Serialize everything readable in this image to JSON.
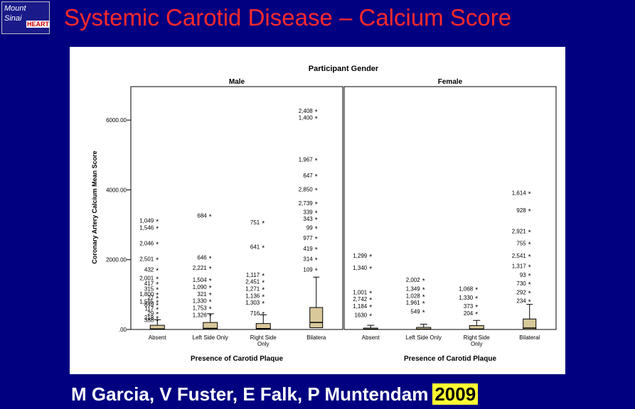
{
  "slide": {
    "title": "Systemic Carotid Disease – Calcium Score",
    "footer_authors": "M Garcia, V Fuster, E Falk, P Muntendam",
    "footer_year": "2009"
  },
  "logo": {
    "line1": "Mount",
    "line2": "Sinai",
    "mark": "HEART"
  },
  "colors": {
    "background": "#000080",
    "title": "#ff2a2a",
    "box_fill": "#d8c89a",
    "year_highlight": "#ffff33"
  },
  "chart_data": {
    "type": "box",
    "title": "Participant Gender",
    "ylabel": "Coronary Artery Calcium Mean Score",
    "xlabel": "Presence of Carotid Plaque",
    "ylim": [
      0,
      7000
    ],
    "yticks": [
      ".00",
      "2000.00",
      "4000.00",
      "6000.00"
    ],
    "ytick_values": [
      0,
      2000,
      4000,
      6000
    ],
    "categories": [
      "Absent",
      "Left Side Only",
      "Right Side Only",
      "Bilateral"
    ],
    "panels": [
      {
        "name": "Male",
        "xtick_labels": [
          "Absent",
          "Left Side Only",
          "Right Side\nOnly",
          "Bilatera"
        ],
        "boxes": [
          {
            "q1": 0,
            "median": 15,
            "q3": 120,
            "whisker_high": 280
          },
          {
            "q1": 0,
            "median": 30,
            "q3": 200,
            "whisker_high": 450
          },
          {
            "q1": 0,
            "median": 25,
            "q3": 170,
            "whisker_high": 420
          },
          {
            "q1": 50,
            "median": 200,
            "q3": 630,
            "whisker_high": 1500
          }
        ],
        "outliers": [
          {
            "cat": 0,
            "y": 3100,
            "label": "1,049"
          },
          {
            "cat": 0,
            "y": 2900,
            "label": "1,546"
          },
          {
            "cat": 0,
            "y": 2450,
            "label": "2,046"
          },
          {
            "cat": 0,
            "y": 2000,
            "label": "2,501"
          },
          {
            "cat": 0,
            "y": 1700,
            "label": "432"
          },
          {
            "cat": 0,
            "y": 1450,
            "label": "2,001"
          },
          {
            "cat": 0,
            "y": 1300,
            "label": "417"
          },
          {
            "cat": 0,
            "y": 1150,
            "label": "315"
          },
          {
            "cat": 0,
            "y": 1000,
            "label": "1,800"
          },
          {
            "cat": 0,
            "y": 900,
            "label": "27"
          },
          {
            "cat": 0,
            "y": 780,
            "label": "1,565"
          },
          {
            "cat": 0,
            "y": 700,
            "label": "849"
          },
          {
            "cat": 0,
            "y": 580,
            "label": "117"
          },
          {
            "cat": 0,
            "y": 450,
            "label": "29"
          },
          {
            "cat": 0,
            "y": 330,
            "label": "218"
          },
          {
            "cat": 0,
            "y": 250,
            "label": "388"
          },
          {
            "cat": 1,
            "y": 3250,
            "label": "684"
          },
          {
            "cat": 1,
            "y": 2050,
            "label": "646"
          },
          {
            "cat": 1,
            "y": 1750,
            "label": "2,221"
          },
          {
            "cat": 1,
            "y": 1400,
            "label": "1,504"
          },
          {
            "cat": 1,
            "y": 1200,
            "label": "1,090"
          },
          {
            "cat": 1,
            "y": 1000,
            "label": "321"
          },
          {
            "cat": 1,
            "y": 800,
            "label": "1,330"
          },
          {
            "cat": 1,
            "y": 600,
            "label": "1,753"
          },
          {
            "cat": 1,
            "y": 400,
            "label": "1,326"
          },
          {
            "cat": 2,
            "y": 3050,
            "label": "751"
          },
          {
            "cat": 2,
            "y": 2350,
            "label": "641"
          },
          {
            "cat": 2,
            "y": 1550,
            "label": "1,117"
          },
          {
            "cat": 2,
            "y": 1350,
            "label": "2,451"
          },
          {
            "cat": 2,
            "y": 1150,
            "label": "1,271"
          },
          {
            "cat": 2,
            "y": 950,
            "label": "1,136"
          },
          {
            "cat": 2,
            "y": 750,
            "label": "1,303"
          },
          {
            "cat": 2,
            "y": 450,
            "label": "716"
          },
          {
            "cat": 3,
            "y": 6250,
            "label": "2,408"
          },
          {
            "cat": 3,
            "y": 6050,
            "label": "1,400"
          },
          {
            "cat": 3,
            "y": 4850,
            "label": "1,967"
          },
          {
            "cat": 3,
            "y": 4400,
            "label": "647"
          },
          {
            "cat": 3,
            "y": 4000,
            "label": "2,850"
          },
          {
            "cat": 3,
            "y": 3600,
            "label": "2,739"
          },
          {
            "cat": 3,
            "y": 3350,
            "label": "339"
          },
          {
            "cat": 3,
            "y": 3150,
            "label": "343"
          },
          {
            "cat": 3,
            "y": 2900,
            "label": "99"
          },
          {
            "cat": 3,
            "y": 2600,
            "label": "977"
          },
          {
            "cat": 3,
            "y": 2300,
            "label": "419"
          },
          {
            "cat": 3,
            "y": 2000,
            "label": "314"
          },
          {
            "cat": 3,
            "y": 1700,
            "label": "109"
          }
        ]
      },
      {
        "name": "Female",
        "xtick_labels": [
          "Absent",
          "Left Side Only",
          "Right Side\nOnly",
          "Bilateral"
        ],
        "boxes": [
          {
            "q1": 0,
            "median": 5,
            "q3": 40,
            "whisker_high": 120
          },
          {
            "q1": 0,
            "median": 8,
            "q3": 60,
            "whisker_high": 150
          },
          {
            "q1": 0,
            "median": 12,
            "q3": 110,
            "whisker_high": 260
          },
          {
            "q1": 0,
            "median": 40,
            "q3": 300,
            "whisker_high": 720
          }
        ],
        "outliers": [
          {
            "cat": 0,
            "y": 2100,
            "label": "1,299"
          },
          {
            "cat": 0,
            "y": 1750,
            "label": "1,340"
          },
          {
            "cat": 0,
            "y": 1050,
            "label": "1,001"
          },
          {
            "cat": 0,
            "y": 850,
            "label": "2,742"
          },
          {
            "cat": 0,
            "y": 650,
            "label": "1,184"
          },
          {
            "cat": 0,
            "y": 400,
            "label": "1630"
          },
          {
            "cat": 1,
            "y": 1400,
            "label": "2,002"
          },
          {
            "cat": 1,
            "y": 1150,
            "label": "1,349"
          },
          {
            "cat": 1,
            "y": 950,
            "label": "1,028"
          },
          {
            "cat": 1,
            "y": 750,
            "label": "1,961"
          },
          {
            "cat": 1,
            "y": 500,
            "label": "549"
          },
          {
            "cat": 2,
            "y": 1150,
            "label": "1,068"
          },
          {
            "cat": 2,
            "y": 900,
            "label": "1,330"
          },
          {
            "cat": 2,
            "y": 650,
            "label": "373"
          },
          {
            "cat": 2,
            "y": 450,
            "label": "204"
          },
          {
            "cat": 3,
            "y": 3900,
            "label": "1,614"
          },
          {
            "cat": 3,
            "y": 3400,
            "label": "928"
          },
          {
            "cat": 3,
            "y": 2800,
            "label": "2,921"
          },
          {
            "cat": 3,
            "y": 2450,
            "label": "755"
          },
          {
            "cat": 3,
            "y": 2100,
            "label": "2,541"
          },
          {
            "cat": 3,
            "y": 1800,
            "label": "1,317"
          },
          {
            "cat": 3,
            "y": 1550,
            "label": "93"
          },
          {
            "cat": 3,
            "y": 1300,
            "label": "730"
          },
          {
            "cat": 3,
            "y": 1050,
            "label": "292"
          },
          {
            "cat": 3,
            "y": 800,
            "label": "234"
          }
        ]
      }
    ]
  }
}
